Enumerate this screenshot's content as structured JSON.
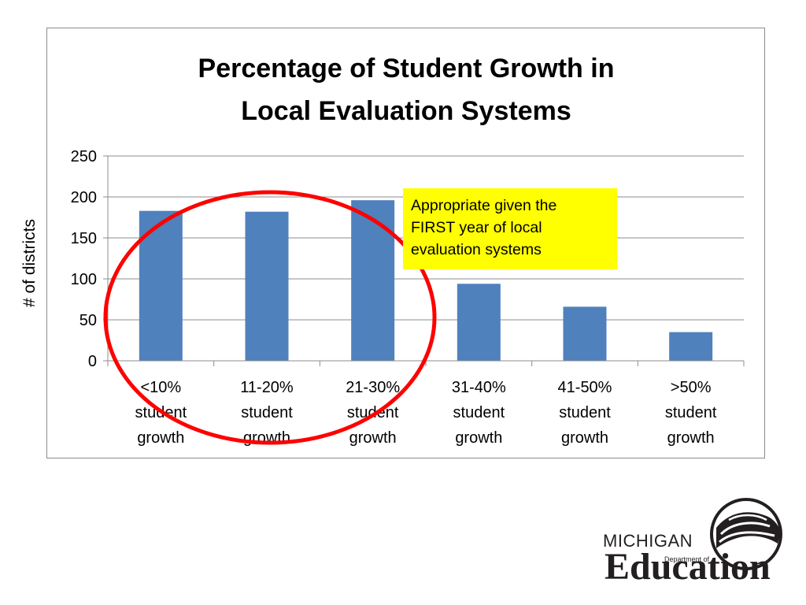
{
  "chart_data": {
    "type": "bar",
    "title_lines": [
      "Percentage of Student Growth in",
      "Local Evaluation Systems"
    ],
    "ylabel": "# of districts",
    "ylim": [
      0,
      250
    ],
    "yticks": [
      0,
      50,
      100,
      150,
      200,
      250
    ],
    "grid": true,
    "legend": "none",
    "bar_color": "#4f81bd",
    "categories": [
      [
        "<10%",
        "student",
        "growth"
      ],
      [
        "11-20%",
        "student",
        "growth"
      ],
      [
        "21-30%",
        "student",
        "growth"
      ],
      [
        "31-40%",
        "student",
        "growth"
      ],
      [
        "41-50%",
        "student",
        "growth"
      ],
      [
        ">50%",
        "student",
        "growth"
      ]
    ],
    "values": [
      183,
      182,
      196,
      94,
      66,
      35
    ]
  },
  "annotations": {
    "callout_lines": [
      "Appropriate given the",
      "FIRST year of local",
      "evaluation systems"
    ],
    "callout_color": "#ffff00",
    "highlight_ellipse_color": "#ff0000"
  },
  "logo": {
    "top_text": "MICHIGAN",
    "small_text": "Department of",
    "main_text": "Education"
  }
}
